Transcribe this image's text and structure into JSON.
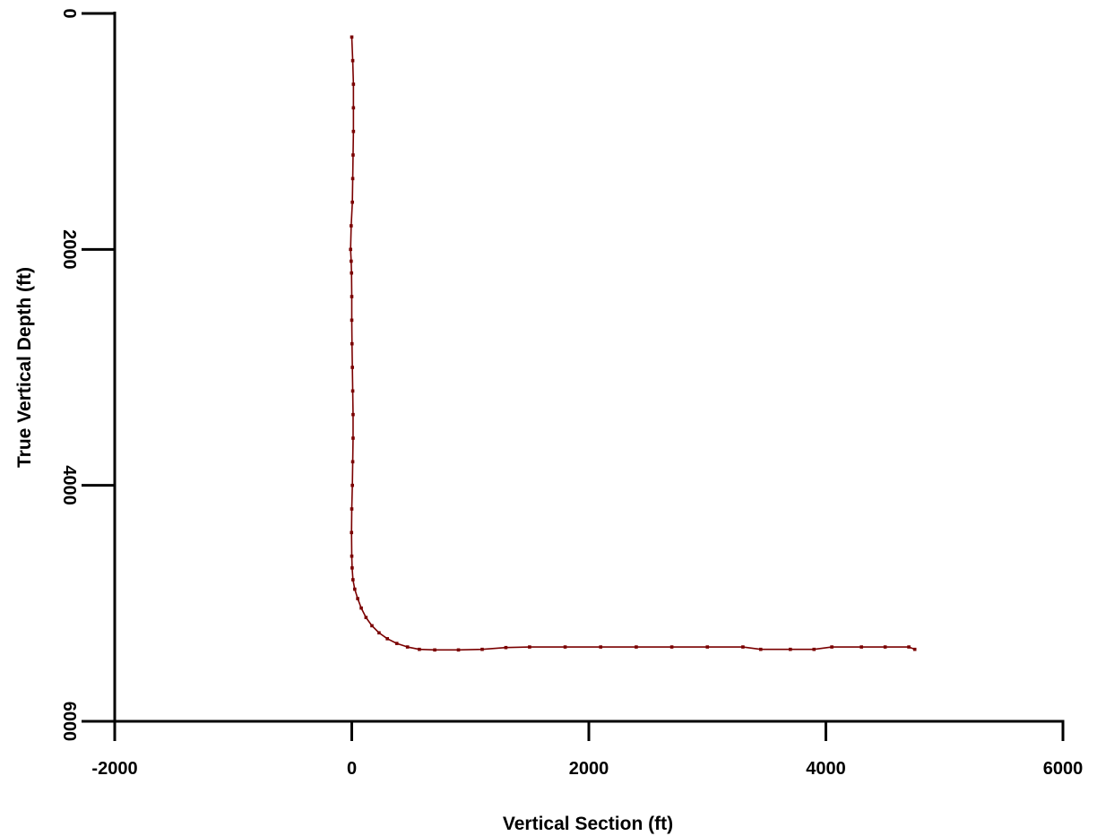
{
  "chart_data": {
    "type": "line",
    "title": "",
    "xlabel": "Vertical Section (ft)",
    "ylabel": "True Vertical Depth (ft)",
    "xlim": [
      -2000,
      6000
    ],
    "ylim": [
      0,
      6000
    ],
    "y_inverted": true,
    "xticks": [
      "-2000",
      "0",
      "2000",
      "4000",
      "6000"
    ],
    "yticks": [
      "0",
      "2000",
      "4000",
      "6000"
    ],
    "grid": false,
    "legend": "none",
    "markers": true,
    "series": [
      {
        "color": "#7a0000",
        "x": [
          0,
          8,
          14,
          14,
          14,
          11,
          8,
          5,
          -5,
          -10,
          -5,
          -2,
          0,
          0,
          2,
          5,
          8,
          11,
          11,
          8,
          5,
          0,
          -2,
          0,
          3,
          10,
          25,
          50,
          80,
          120,
          170,
          230,
          300,
          380,
          470,
          570,
          700,
          900,
          1100,
          1300,
          1500,
          1800,
          2100,
          2400,
          2700,
          3000,
          3300,
          3450,
          3700,
          3900,
          4050,
          4300,
          4500,
          4700,
          4750
        ],
        "y": [
          200,
          400,
          600,
          800,
          1000,
          1200,
          1400,
          1600,
          1800,
          2000,
          2100,
          2200,
          2400,
          2600,
          2800,
          3000,
          3200,
          3400,
          3600,
          3800,
          4000,
          4200,
          4400,
          4600,
          4700,
          4800,
          4880,
          4960,
          5040,
          5120,
          5190,
          5250,
          5300,
          5340,
          5370,
          5390,
          5395,
          5395,
          5390,
          5375,
          5370,
          5370,
          5370,
          5370,
          5370,
          5370,
          5370,
          5390,
          5390,
          5390,
          5370,
          5370,
          5370,
          5370,
          5390
        ]
      }
    ]
  }
}
